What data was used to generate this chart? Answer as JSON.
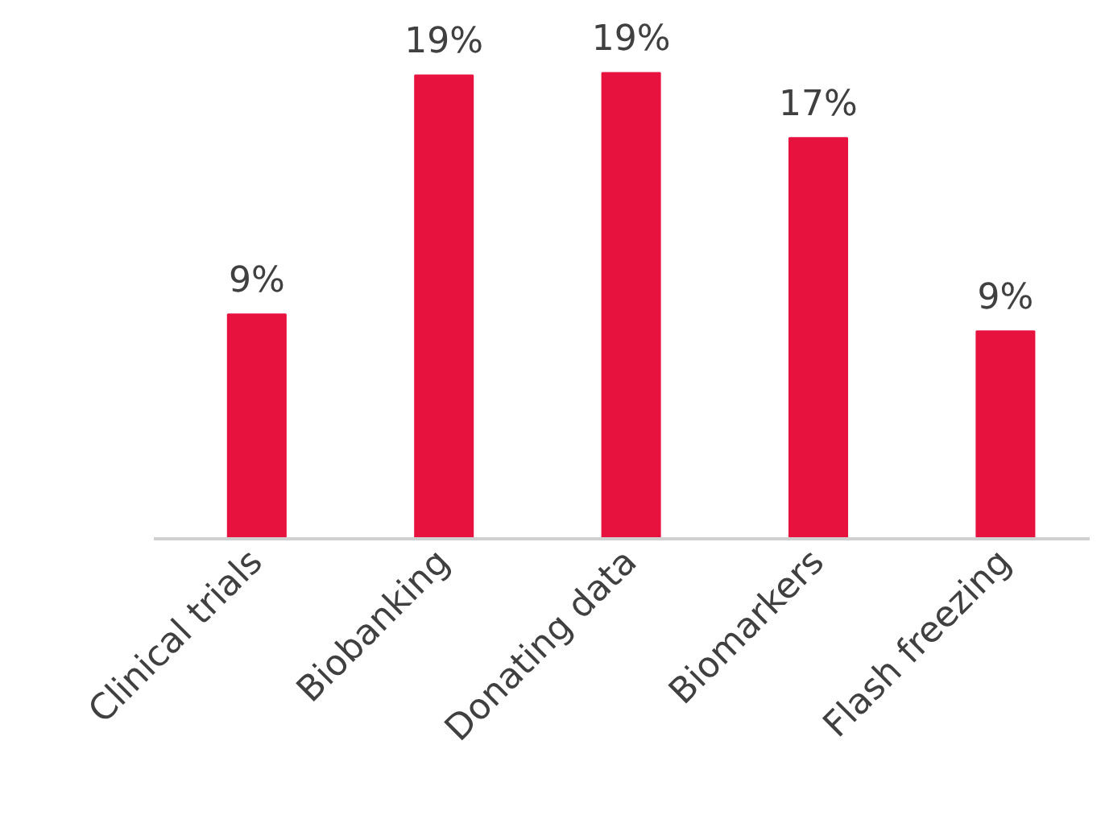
{
  "chart_data": {
    "type": "bar",
    "categories": [
      "Clinical trials",
      "Biobanking",
      "Donating data",
      "Biomarkers",
      "Flash freezing"
    ],
    "values": [
      9.3,
      19.2,
      19.3,
      16.6,
      8.6
    ],
    "value_labels": [
      "9%",
      "19%",
      "19%",
      "17%",
      "9%"
    ],
    "color": "#e8123f",
    "grid": false
  }
}
